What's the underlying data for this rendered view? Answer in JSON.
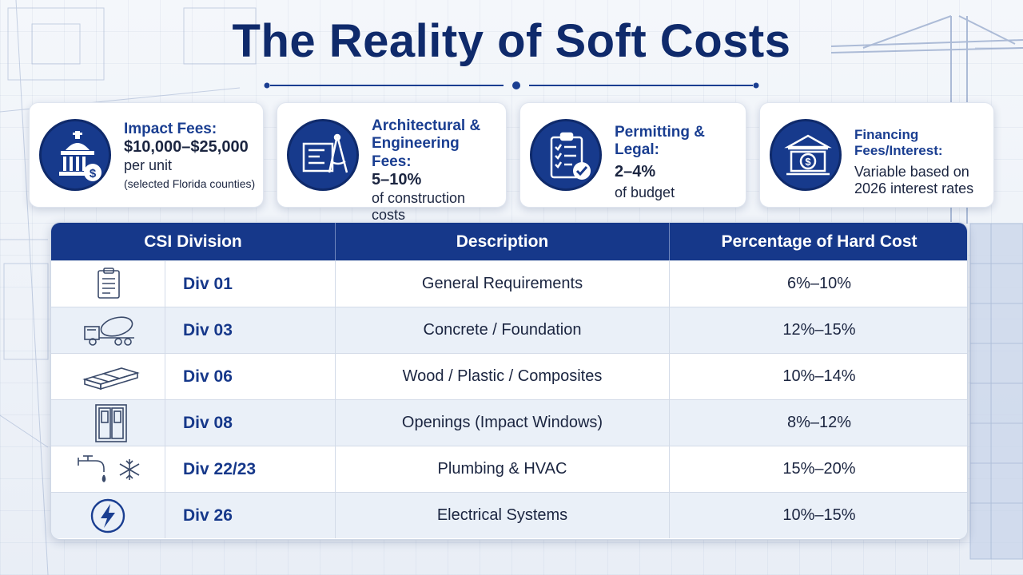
{
  "title": "The Reality of Soft Costs",
  "colors": {
    "navy": "#16388a",
    "title": "#0f2a6b",
    "accent": "#1a3e91"
  },
  "cards": [
    {
      "icon": "government-building-dollar-icon",
      "title": "Impact Fees:",
      "value": "$10,000–$25,000",
      "sub": "per unit",
      "note": "(selected Florida counties)"
    },
    {
      "icon": "blueprint-compass-icon",
      "title": "Architectural &",
      "title2": "Engineering Fees:",
      "value": "5–10%",
      "sub": "of construction costs"
    },
    {
      "icon": "clipboard-checklist-icon",
      "title": "Permitting & Legal:",
      "value": "2–4%",
      "sub": "of budget"
    },
    {
      "icon": "bank-dollar-icon",
      "title": "Financing Fees/Interest:",
      "sub": "Variable based on",
      "sub2": "2026 interest rates"
    }
  ],
  "table": {
    "headers": [
      "CSI Division",
      "Description",
      "Percentage of Hard Cost"
    ],
    "rows": [
      {
        "icon": "clipboard-icon",
        "division": "Div 01",
        "description": "General Requirements",
        "percentage": "6%–10%"
      },
      {
        "icon": "cement-mixer-truck-icon",
        "division": "Div 03",
        "description": "Concrete / Foundation",
        "percentage": "12%–15%"
      },
      {
        "icon": "lumber-stack-icon",
        "division": "Div 06",
        "description": "Wood / Plastic / Composites",
        "percentage": "10%–14%"
      },
      {
        "icon": "double-door-icon",
        "division": "Div 08",
        "description": "Openings (Impact Windows)",
        "percentage": "8%–12%"
      },
      {
        "icon": "faucet-snowflake-icon",
        "division": "Div 22/23",
        "description": "Plumbing & HVAC",
        "percentage": "15%–20%"
      },
      {
        "icon": "lightning-bolt-icon",
        "division": "Div 26",
        "description": "Electrical Systems",
        "percentage": "10%–15%"
      }
    ]
  }
}
